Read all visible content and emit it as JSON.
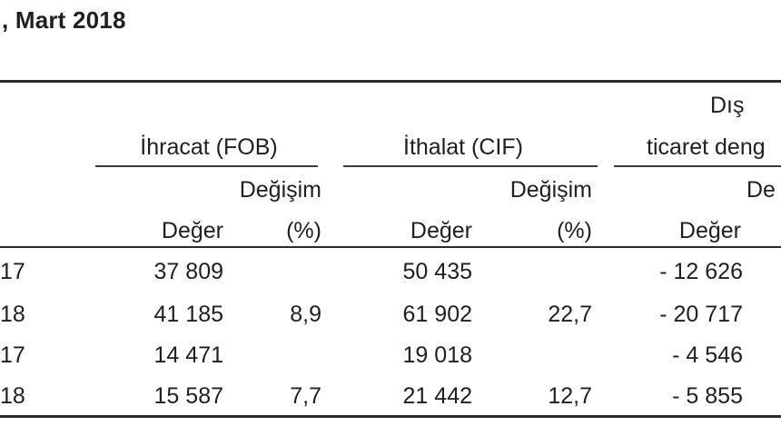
{
  "title": ", Mart 2018",
  "groups": {
    "exports": "İhracat (FOB)",
    "imports": "İthalat (CIF)",
    "trade_line1": "Dış",
    "trade_line2": "ticaret deng"
  },
  "subheaders": {
    "exports_change": "Değişim",
    "imports_change": "Değişim",
    "trade_change": "De",
    "exports_value": "Değer",
    "exports_pct": "(%)",
    "imports_value": "Değer",
    "imports_pct": "(%)",
    "trade_value": "Değer"
  },
  "rows": [
    {
      "year": "17",
      "exp_value": "37 809",
      "exp_pct": "",
      "imp_value": "50 435",
      "imp_pct": "",
      "bal_value": "- 12 626"
    },
    {
      "year": "18",
      "exp_value": "41 185",
      "exp_pct": "8,9",
      "imp_value": "61 902",
      "imp_pct": "22,7",
      "bal_value": "- 20 717"
    },
    {
      "year": "17",
      "exp_value": "14 471",
      "exp_pct": "",
      "imp_value": "19 018",
      "imp_pct": "",
      "bal_value": "- 4 546"
    },
    {
      "year": "18",
      "exp_value": "15 587",
      "exp_pct": "7,7",
      "imp_value": "21 442",
      "imp_pct": "12,7",
      "bal_value": "- 5 855"
    }
  ]
}
